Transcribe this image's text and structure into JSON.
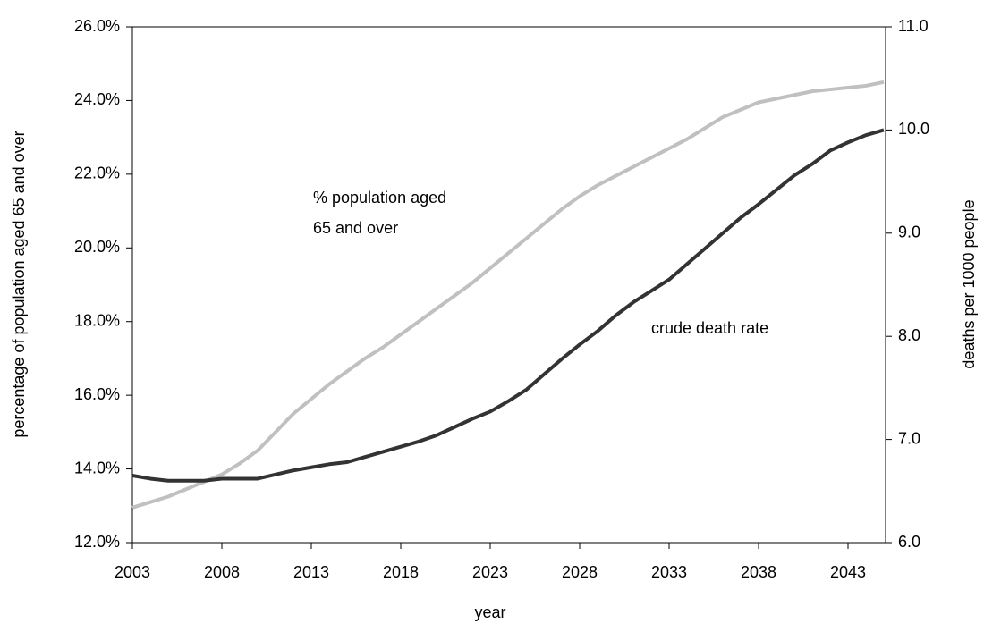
{
  "chart_data": {
    "type": "line",
    "x_label": "year",
    "y_label": "percentage of population aged 65 and over",
    "y2_label": "deaths per 1000 people",
    "x": [
      2003,
      2004,
      2005,
      2006,
      2007,
      2008,
      2009,
      2010,
      2011,
      2012,
      2013,
      2014,
      2015,
      2016,
      2017,
      2018,
      2019,
      2020,
      2021,
      2022,
      2023,
      2024,
      2025,
      2026,
      2027,
      2028,
      2029,
      2030,
      2031,
      2032,
      2033,
      2034,
      2035,
      2036,
      2037,
      2038,
      2039,
      2040,
      2041,
      2042,
      2043,
      2044,
      2045
    ],
    "series": [
      {
        "color": "#c0c0c0",
        "axis": "y",
        "values": [
          12.95,
          13.1,
          13.25,
          13.45,
          13.65,
          13.85,
          14.15,
          14.5,
          15.0,
          15.5,
          15.9,
          16.3,
          16.65,
          17.0,
          17.3,
          17.65,
          18.0,
          18.35,
          18.7,
          19.05,
          19.45,
          19.85,
          20.25,
          20.65,
          21.05,
          21.4,
          21.7,
          21.95,
          22.2,
          22.45,
          22.7,
          22.95,
          23.25,
          23.55,
          23.75,
          23.95,
          24.05,
          24.15,
          24.25,
          24.3,
          24.35,
          24.4,
          24.5
        ]
      },
      {
        "color": "#333333",
        "axis": "y2",
        "values": [
          6.65,
          6.62,
          6.6,
          6.6,
          6.6,
          6.62,
          6.62,
          6.62,
          6.66,
          6.7,
          6.73,
          6.76,
          6.78,
          6.83,
          6.88,
          6.93,
          6.98,
          7.04,
          7.12,
          7.2,
          7.27,
          7.37,
          7.48,
          7.63,
          7.78,
          7.92,
          8.05,
          8.2,
          8.33,
          8.44,
          8.55,
          8.7,
          8.85,
          9.0,
          9.15,
          9.28,
          9.42,
          9.56,
          9.67,
          9.8,
          9.88,
          9.95,
          10.0
        ]
      }
    ],
    "annotations": [
      {
        "lines": [
          "% population aged",
          "65 and over"
        ]
      },
      {
        "lines": [
          "crude death rate"
        ]
      }
    ],
    "xlim": [
      2003,
      2045.1
    ],
    "xticks": [
      2003,
      2008,
      2013,
      2018,
      2023,
      2028,
      2033,
      2038,
      2043
    ],
    "ylim": [
      12,
      26
    ],
    "yticks": [
      {
        "value": 12,
        "label": "12.0%"
      },
      {
        "value": 14,
        "label": "14.0%"
      },
      {
        "value": 16,
        "label": "16.0%"
      },
      {
        "value": 18,
        "label": "18.0%"
      },
      {
        "value": 20,
        "label": "20.0%"
      },
      {
        "value": 22,
        "label": "22.0%"
      },
      {
        "value": 24,
        "label": "24.0%"
      },
      {
        "value": 26,
        "label": "26.0%"
      }
    ],
    "y2lim": [
      6,
      11
    ],
    "y2ticks": [
      {
        "value": 6,
        "label": "6.0"
      },
      {
        "value": 7,
        "label": "7.0"
      },
      {
        "value": 8,
        "label": "8.0"
      },
      {
        "value": 9,
        "label": "9.0"
      },
      {
        "value": 10,
        "label": "10.0"
      },
      {
        "value": 11,
        "label": "11.0"
      }
    ],
    "grid": false
  }
}
